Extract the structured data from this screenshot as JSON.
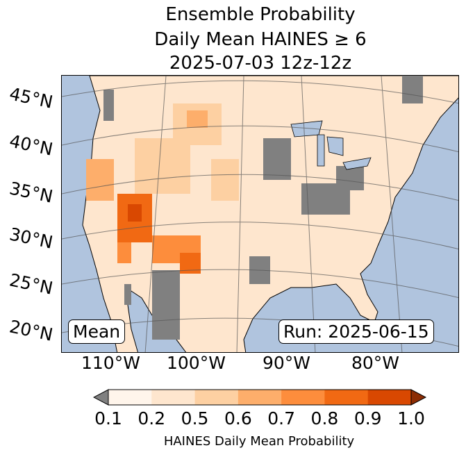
{
  "title": {
    "line1": "Ensemble Probability",
    "line2": "Daily Mean HAINES ≥ 6",
    "line3": "2025-07-03 12z-12z"
  },
  "map": {
    "ocean_color": "#b0c4de",
    "land_color": "#fff5eb",
    "nodata_color": "#808080",
    "lat_labels": [
      "45°N",
      "40°N",
      "35°N",
      "30°N",
      "25°N",
      "20°N"
    ],
    "lon_labels": [
      "110°W",
      "100°W",
      "90°W",
      "80°W"
    ],
    "stat_label": "Mean",
    "run_label": "Run: 2025-06-15"
  },
  "colorbar": {
    "ticks": [
      "0.1",
      "0.2",
      "0.5",
      "0.6",
      "0.7",
      "0.8",
      "0.9",
      "1.0"
    ],
    "colors": [
      "#fff5eb",
      "#fee6ce",
      "#fdd0a2",
      "#fdae6b",
      "#fd8d3c",
      "#f16913",
      "#d94801"
    ],
    "under_color": "#808080",
    "over_color": "#8c2d04",
    "label": "HAINES Daily Mean Probability"
  }
}
